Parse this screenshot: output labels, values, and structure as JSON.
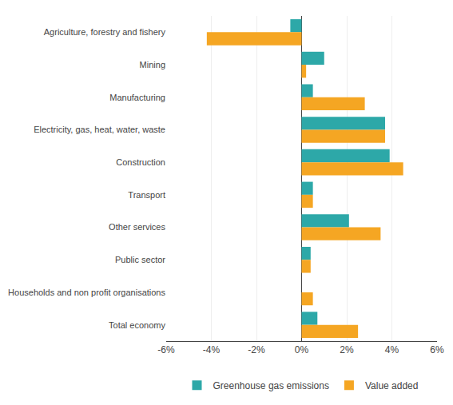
{
  "chart_data": {
    "type": "bar",
    "orientation": "horizontal",
    "categories": [
      "Agriculture, forestry and fishery",
      "Mining",
      "Manufacturing",
      "Electricity, gas, heat, water, waste",
      "Construction",
      "Transport",
      "Other services",
      "Public sector",
      "Households and non profit organisations",
      "Total economy"
    ],
    "series": [
      {
        "name": "Greenhouse gas emissions",
        "color": "#2da8a8",
        "values": [
          -0.5,
          1.0,
          0.5,
          3.7,
          3.9,
          0.5,
          2.1,
          0.4,
          0.0,
          0.7
        ]
      },
      {
        "name": "Value added",
        "color": "#f5a623",
        "values": [
          -4.2,
          0.2,
          2.8,
          3.7,
          4.5,
          0.5,
          3.5,
          0.4,
          0.5,
          2.5
        ]
      }
    ],
    "xlim": [
      -6,
      6
    ],
    "xticks": [
      {
        "value": -6,
        "label": "-6%"
      },
      {
        "value": -4,
        "label": "-4%"
      },
      {
        "value": -2,
        "label": "-2%"
      },
      {
        "value": 0,
        "label": "0%"
      },
      {
        "value": 2,
        "label": "2%"
      },
      {
        "value": 4,
        "label": "4%"
      },
      {
        "value": 6,
        "label": "6%"
      }
    ],
    "grid": true,
    "legend": "bottom"
  }
}
